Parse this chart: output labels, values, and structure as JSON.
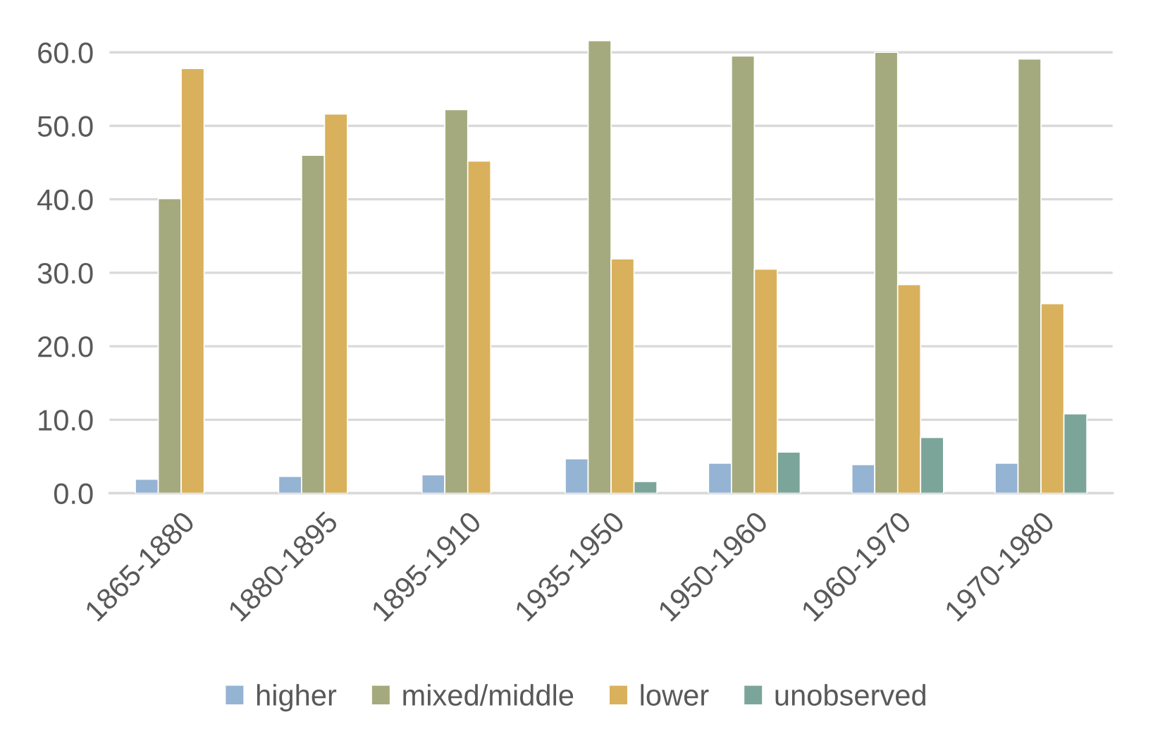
{
  "chart_data": {
    "type": "bar",
    "categories": [
      "1865-1880",
      "1880-1895",
      "1895-1910",
      "1935-1950",
      "1950-1960",
      "1960-1970",
      "1970-1980"
    ],
    "series": [
      {
        "name": "higher",
        "color": "#95b3d3",
        "values": [
          1.9,
          2.3,
          2.5,
          4.7,
          4.1,
          3.9,
          4.1
        ]
      },
      {
        "name": "mixed/middle",
        "color": "#a5aa7e",
        "values": [
          40.1,
          46.0,
          52.2,
          61.6,
          59.5,
          60.0,
          59.1
        ]
      },
      {
        "name": "lower",
        "color": "#d9b15c",
        "values": [
          57.8,
          51.6,
          45.2,
          31.9,
          30.5,
          28.4,
          25.8
        ]
      },
      {
        "name": "unobserved",
        "color": "#7ca59a",
        "values": [
          null,
          null,
          null,
          1.6,
          5.6,
          7.6,
          10.8
        ]
      }
    ],
    "ylim": [
      0,
      62
    ],
    "yticks": [
      {
        "value": 0,
        "label": "0.0"
      },
      {
        "value": 10,
        "label": "10.0"
      },
      {
        "value": 20,
        "label": "20.0"
      },
      {
        "value": 30,
        "label": "30.0"
      },
      {
        "value": 40,
        "label": "40.0"
      },
      {
        "value": 50,
        "label": "50.0"
      },
      {
        "value": 60,
        "label": "60.0"
      }
    ],
    "grid": "y",
    "legend": "bottom"
  }
}
